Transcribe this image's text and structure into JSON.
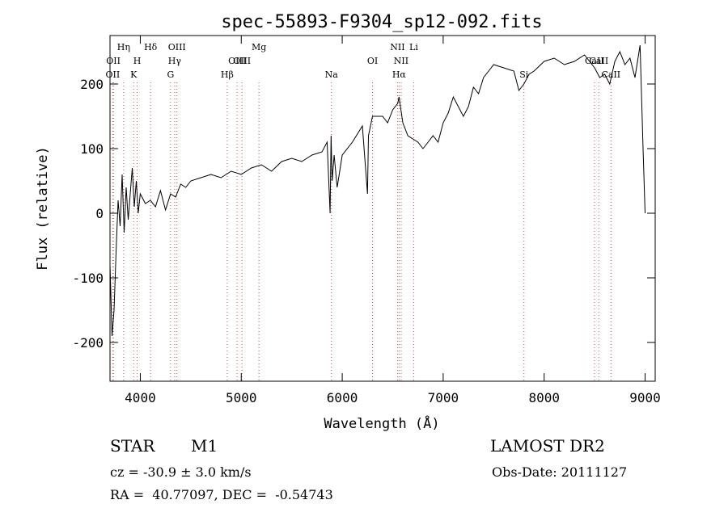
{
  "chart_data": {
    "type": "line",
    "title": "spec-55893-F9304_sp12-092.fits",
    "xlabel": "Wavelength (Å)",
    "ylabel": "Flux (relative)",
    "xlim": [
      3700,
      9100
    ],
    "ylim": [
      -260,
      275
    ],
    "x_ticks": [
      4000,
      5000,
      6000,
      7000,
      8000,
      9000
    ],
    "y_ticks": [
      -200,
      -100,
      0,
      100,
      200
    ],
    "grid": false,
    "line_color": "#000000",
    "marker_line_color": "#c0504d",
    "series": [
      {
        "values_x": [
          3700,
          3720,
          3740,
          3760,
          3780,
          3800,
          3820,
          3840,
          3860,
          3880,
          3900,
          3920,
          3940,
          3960,
          3980,
          4000,
          4050,
          4100,
          4150,
          4200,
          4250,
          4300,
          4350,
          4400,
          4450,
          4500,
          4600,
          4700,
          4800,
          4900,
          5000,
          5100,
          5200,
          5300,
          5400,
          5500,
          5600,
          5700,
          5800,
          5850,
          5880,
          5890,
          5900,
          5920,
          5950,
          6000,
          6100,
          6200,
          6250,
          6260,
          6300,
          6400,
          6450,
          6500,
          6550,
          6563,
          6600,
          6650,
          6700,
          6750,
          6800,
          6850,
          6900,
          6950,
          7000,
          7050,
          7100,
          7150,
          7200,
          7250,
          7300,
          7350,
          7400,
          7450,
          7500,
          7600,
          7700,
          7750,
          7800,
          7850,
          7900,
          8000,
          8100,
          8200,
          8300,
          8400,
          8500,
          8550,
          8600,
          8650,
          8700,
          8750,
          8800,
          8850,
          8900,
          8950,
          8980,
          9000
        ],
        "values_y": [
          -80,
          -190,
          -150,
          -60,
          20,
          -20,
          60,
          -30,
          40,
          -10,
          30,
          70,
          10,
          50,
          0,
          30,
          15,
          20,
          10,
          35,
          5,
          30,
          25,
          45,
          40,
          50,
          55,
          60,
          55,
          65,
          60,
          70,
          75,
          65,
          80,
          85,
          80,
          90,
          95,
          110,
          0,
          120,
          50,
          90,
          40,
          90,
          110,
          135,
          30,
          120,
          150,
          150,
          140,
          160,
          170,
          180,
          140,
          120,
          115,
          110,
          100,
          110,
          120,
          110,
          140,
          155,
          180,
          165,
          150,
          165,
          195,
          185,
          210,
          220,
          230,
          225,
          220,
          190,
          200,
          215,
          220,
          235,
          240,
          230,
          235,
          245,
          225,
          210,
          215,
          200,
          235,
          250,
          230,
          240,
          210,
          260,
          100,
          0
        ]
      }
    ],
    "line_markers": [
      {
        "wl": 3727,
        "label": "OII",
        "row": 4
      },
      {
        "wl": 3733,
        "label": "OII",
        "row": 3
      },
      {
        "wl": 3835,
        "label": "Hη",
        "row": 1
      },
      {
        "wl": 3934,
        "label": "K",
        "row": 4
      },
      {
        "wl": 3969,
        "label": "H",
        "row": 3
      },
      {
        "wl": 4102,
        "label": "Hδ",
        "row": 1
      },
      {
        "wl": 4300,
        "label": "G",
        "row": 4
      },
      {
        "wl": 4340,
        "label": "Hγ",
        "row": 3
      },
      {
        "wl": 4363,
        "label": "OIII",
        "row": 1
      },
      {
        "wl": 4861,
        "label": "Hβ",
        "row": 4
      },
      {
        "wl": 4959,
        "label": "OIII",
        "row": 3
      },
      {
        "wl": 5007,
        "label": "OIII",
        "row": 3
      },
      {
        "wl": 5175,
        "label": "Mg",
        "row": 1
      },
      {
        "wl": 5893,
        "label": "Na",
        "row": 4
      },
      {
        "wl": 6300,
        "label": "OI",
        "row": 3
      },
      {
        "wl": 6548,
        "label": "NII",
        "row": 1
      },
      {
        "wl": 6563,
        "label": "Hα",
        "row": 4
      },
      {
        "wl": 6584,
        "label": "NII",
        "row": 3
      },
      {
        "wl": 6708,
        "label": "Li",
        "row": 1
      },
      {
        "wl": 7800,
        "label": "Si",
        "row": 4
      },
      {
        "wl": 8498,
        "label": "CaII",
        "row": 2
      },
      {
        "wl": 8542,
        "label": "CaII",
        "row": 3
      },
      {
        "wl": 8662,
        "label": "CaII",
        "row": 4
      }
    ]
  },
  "info": {
    "object_class": "STAR",
    "subclass": "M1",
    "survey": "LAMOST DR2",
    "redshift": "cz = -30.9 ± 3.0 km/s",
    "obs_date": "Obs-Date: 20111127",
    "coords": "RA =  40.77097, DEC =  -0.54743"
  }
}
